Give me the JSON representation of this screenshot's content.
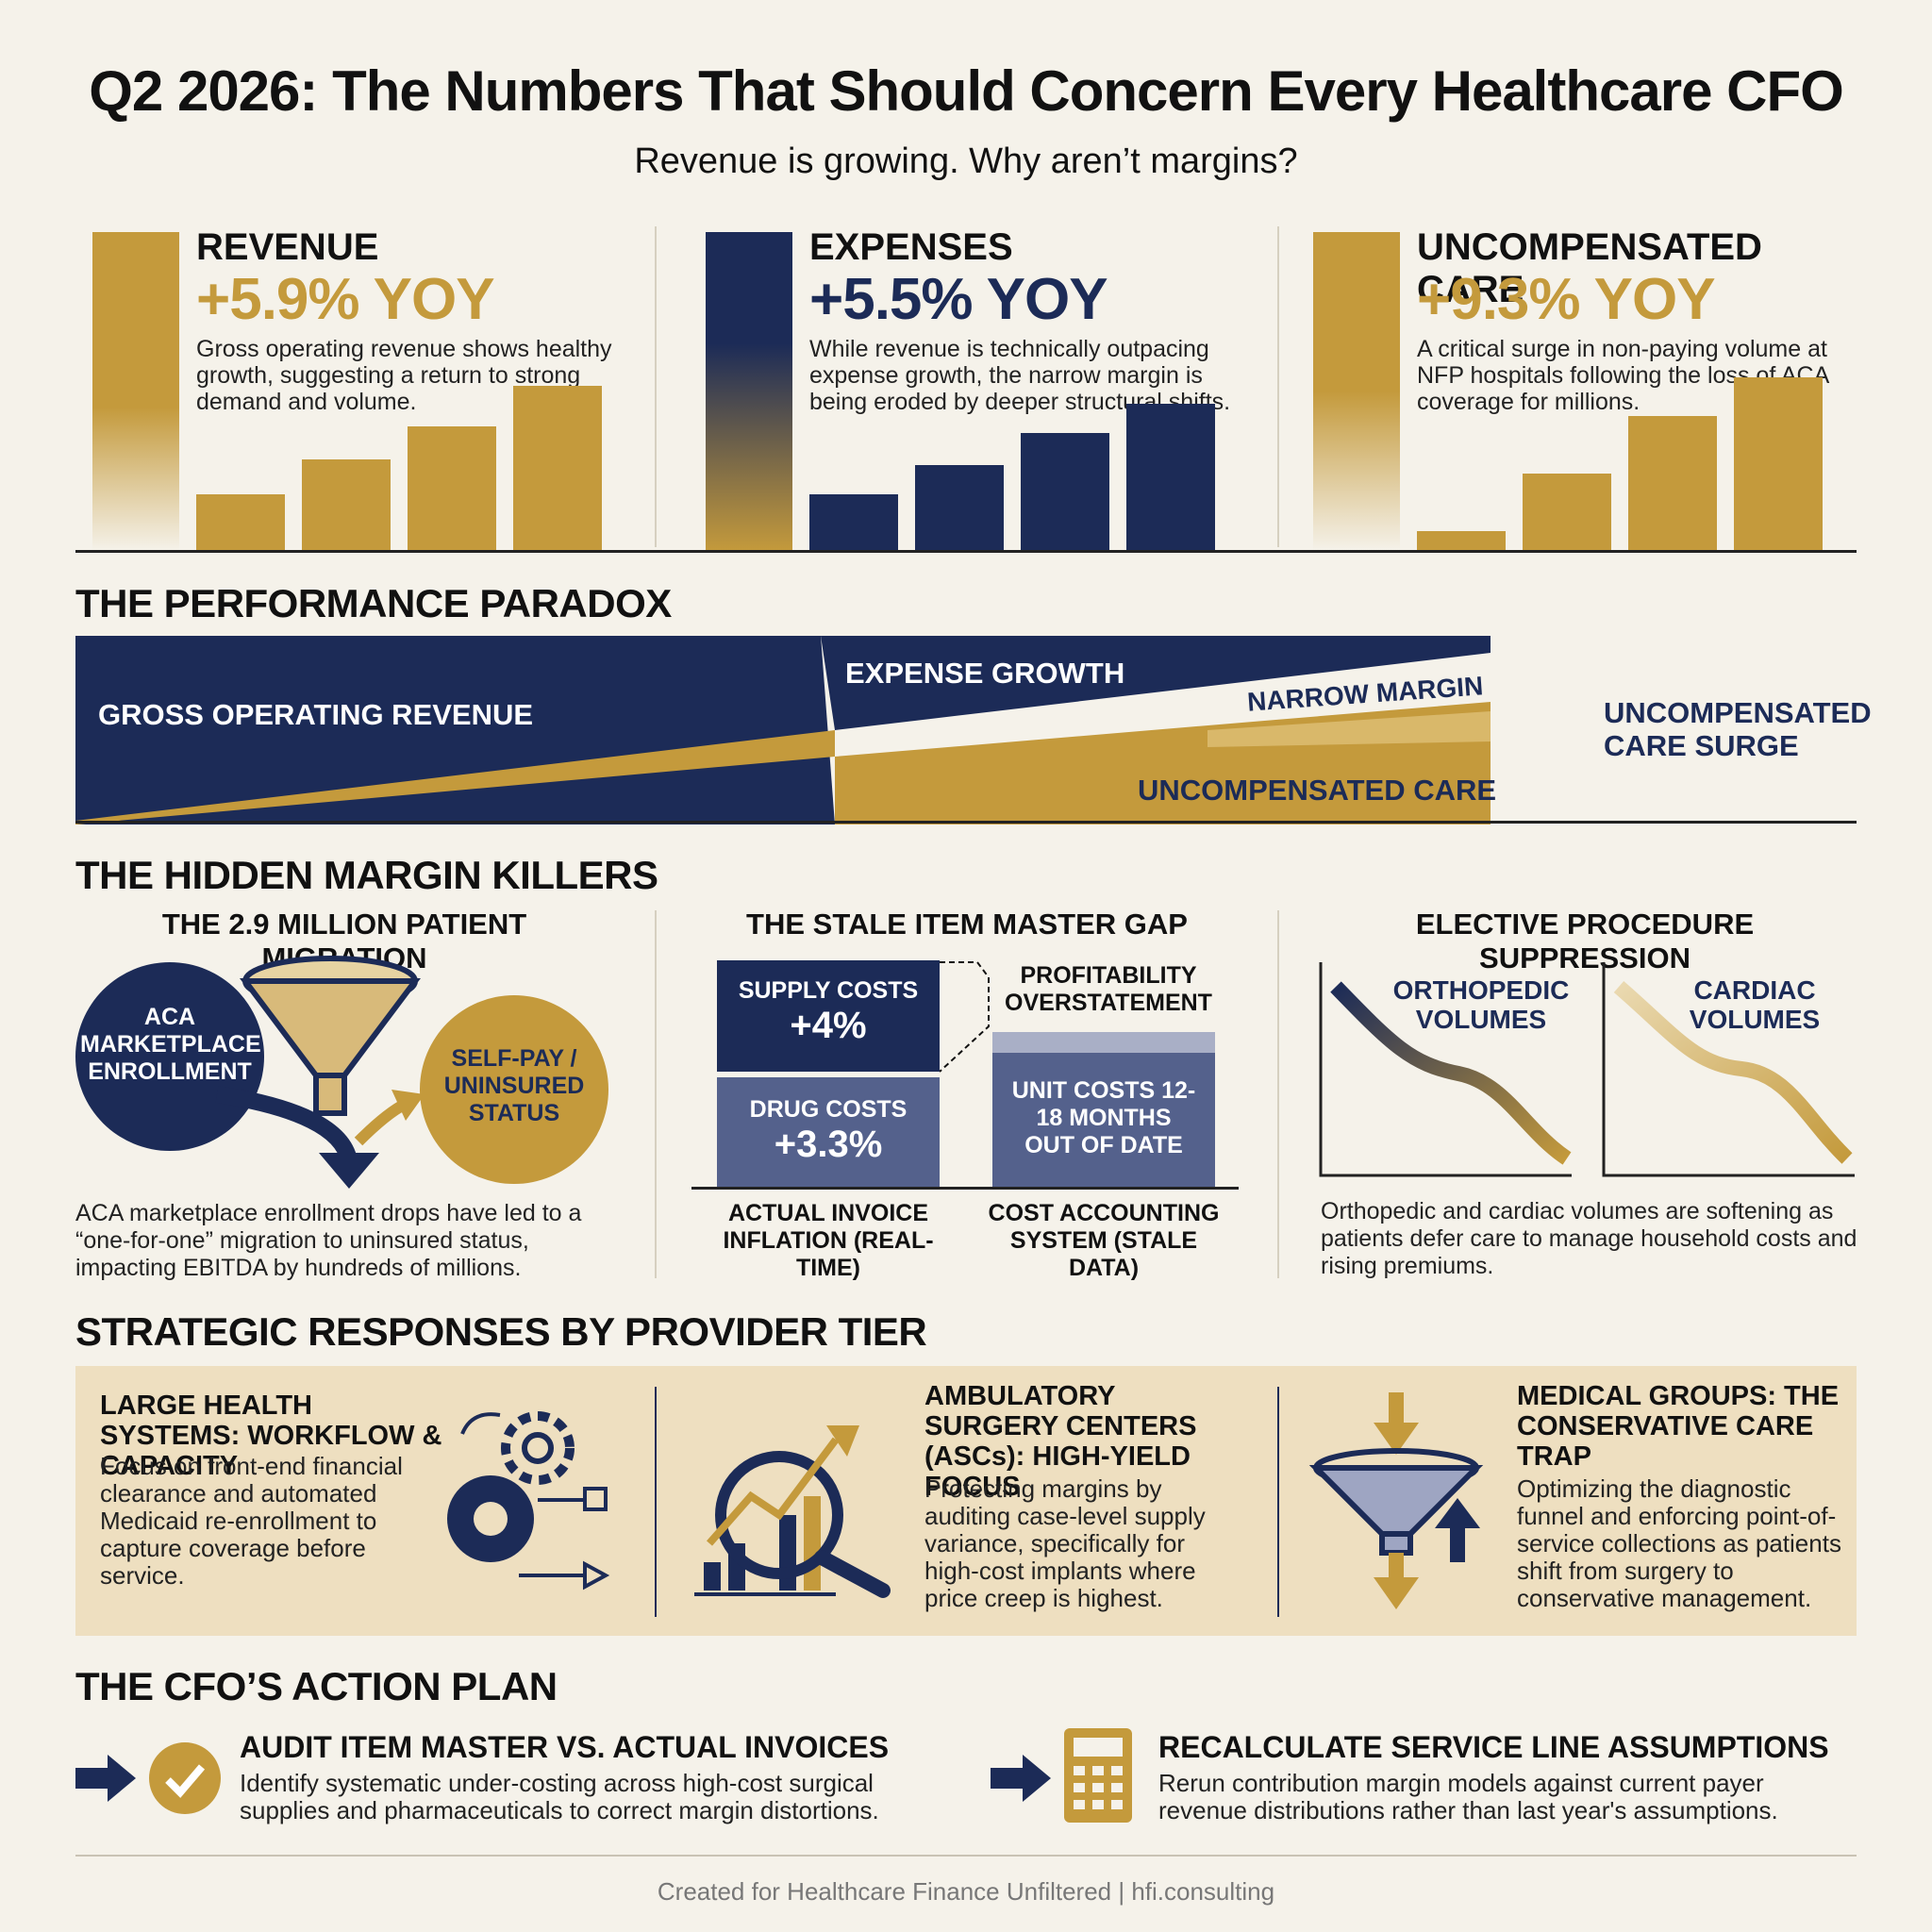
{
  "header": {
    "title": "Q2 2026: The Numbers That Should Concern Every Healthcare CFO",
    "subtitle": "Revenue is growing. Why aren’t margins?"
  },
  "stats": [
    {
      "label": "REVENUE",
      "value": "+5.9% YOY",
      "description": "Gross operating revenue shows healthy growth, suggesting a return to strong demand and volume.",
      "color": "#c49a3c",
      "bars": [
        0.33,
        0.53,
        0.72,
        0.95
      ]
    },
    {
      "label": "EXPENSES",
      "value": "+5.5% YOY",
      "description": "While revenue is technically outpacing expense growth, the narrow margin is being eroded by deeper structural shifts.",
      "color": "#1c2b57",
      "bars": [
        0.33,
        0.5,
        0.68,
        0.85
      ]
    },
    {
      "label": "UNCOMPENSATED CARE",
      "value": "+9.3% YOY",
      "description": "A critical surge in non-paying volume at NFP hospitals following the loss of ACA coverage for millions.",
      "color": "#c49a3c",
      "bars": [
        0.12,
        0.45,
        0.78,
        1.0
      ]
    }
  ],
  "paradox": {
    "title": "THE PERFORMANCE PARADOX",
    "gross_revenue": "GROSS OPERATING REVENUE",
    "expense_growth": "EXPENSE GROWTH",
    "narrow_margin": "NARROW MARGIN",
    "uncompensated_care": "UNCOMPENSATED CARE",
    "surge_label": "UNCOMPENSATED CARE SURGE"
  },
  "killers": {
    "title": "THE HIDDEN MARGIN KILLERS",
    "migration": {
      "title": "THE 2.9 MILLION PATIENT MIGRATION",
      "aca_label": "ACA MARKETPLACE ENROLLMENT",
      "selfpay_label": "SELF-PAY / UNINSURED STATUS",
      "description": "ACA marketplace enrollment drops have led to a “one-for-one” migration to uninsured status, impacting EBITDA by hundreds of millions."
    },
    "item_master": {
      "title": "THE STALE ITEM MASTER GAP",
      "supply_label": "SUPPLY COSTS",
      "supply_value": "+4%",
      "drug_label": "DRUG COSTS",
      "drug_value": "+3.3%",
      "overstatement": "PROFITABILITY OVERSTATEMENT",
      "unit_costs": "UNIT COSTS 12-18 MONTHS OUT OF DATE",
      "actual_caption": "ACTUAL INVOICE INFLATION (REAL-TIME)",
      "system_caption": "COST ACCOUNTING SYSTEM (STALE DATA)"
    },
    "elective": {
      "title": "ELECTIVE PROCEDURE SUPPRESSION",
      "ortho_label": "ORTHOPEDIC VOLUMES",
      "cardiac_label": "CARDIAC VOLUMES",
      "description": "Orthopedic and cardiac volumes are softening as patients defer care to manage household costs and rising premiums."
    }
  },
  "strategic": {
    "title": "STRATEGIC RESPONSES BY PROVIDER TIER",
    "tiers": [
      {
        "head": "LARGE HEALTH SYSTEMS: WORKFLOW & CAPACITY",
        "text": "Focus on front-end financial clearance and automated Medicaid re-enrollment to capture coverage before service.",
        "icon": "gears-icon"
      },
      {
        "head": "AMBULATORY SURGERY CENTERS (ASCs): HIGH-YIELD FOCUS",
        "text": "Protecting margins by auditing case-level supply variance, specifically for high-cost implants where price creep is highest.",
        "icon": "magnifier-chart-icon"
      },
      {
        "head": "MEDICAL GROUPS: THE CONSERVATIVE CARE TRAP",
        "text": "Optimizing the diagnostic funnel and enforcing point-of-service collections as patients shift from surgery to conservative management.",
        "icon": "funnel-arrows-icon"
      }
    ]
  },
  "action_plan": {
    "title": "THE CFO’S ACTION PLAN",
    "items": [
      {
        "head": "AUDIT ITEM MASTER VS. ACTUAL INVOICES",
        "text": "Identify systematic under-costing across high-cost surgical supplies and pharmaceuticals to correct margin distortions.",
        "icon": "check-circle-icon"
      },
      {
        "head": "RECALCULATE SERVICE LINE ASSUMPTIONS",
        "text": "Rerun contribution margin models against current payer revenue distributions rather than last year's assumptions.",
        "icon": "calculator-icon"
      }
    ]
  },
  "footer": {
    "credit": "Created for Healthcare Finance Unfiltered | hfi.consulting"
  }
}
